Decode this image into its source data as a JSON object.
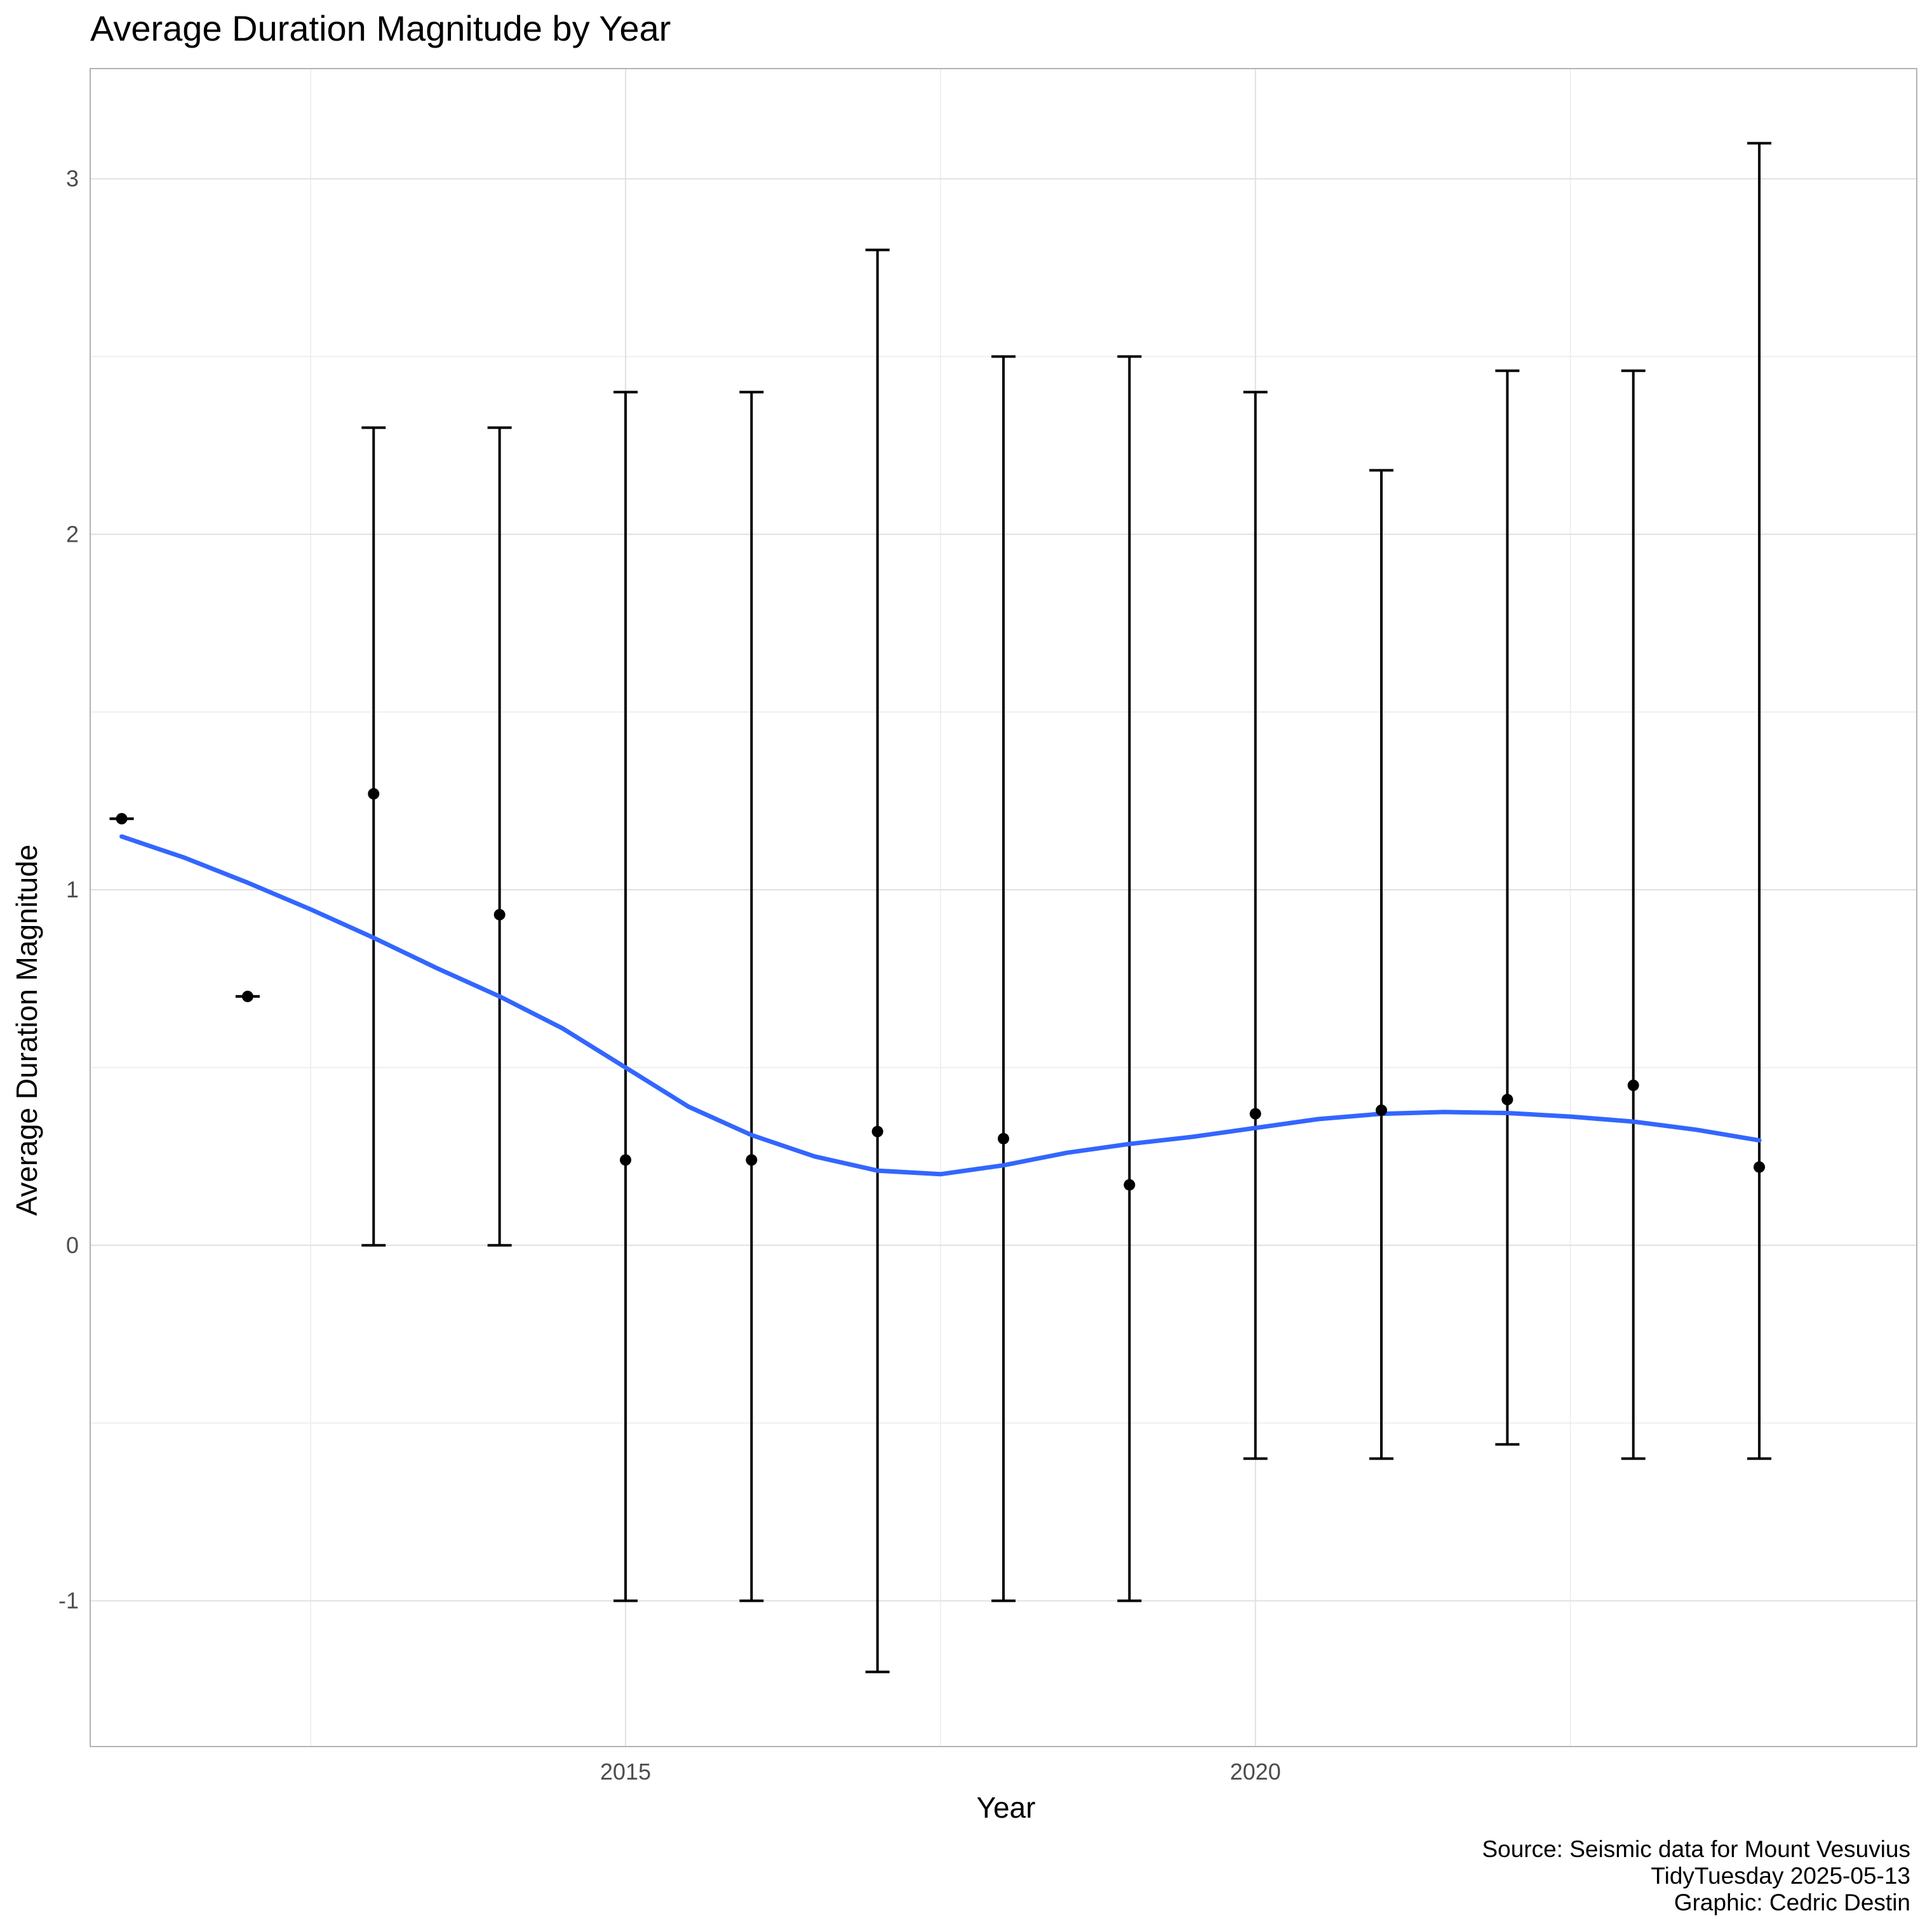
{
  "chart_data": {
    "type": "scatter",
    "title": "Average Duration Magnitude by Year",
    "xlabel": "Year",
    "ylabel": "Average Duration Magnitude",
    "caption": [
      "Source: Seismic data for Mount Vesuvius",
      "TidyTuesday 2025-05-13",
      "Graphic: Cedric Destin"
    ],
    "xlim": [
      2010.75,
      2025.25
    ],
    "ylim": [
      -1.41,
      3.31
    ],
    "x_ticks": [
      2015,
      2020
    ],
    "x_tick_labels": [
      "2015",
      "2020"
    ],
    "y_ticks": [
      -1,
      0,
      1,
      2,
      3
    ],
    "y_tick_labels": [
      "-1",
      "0",
      "1",
      "2",
      "3"
    ],
    "grid": true,
    "colors": {
      "points": "#000000",
      "errorbars": "#000000",
      "smooth": "#3366ff",
      "grid": "#e0e0e0",
      "panel_border": "#b3b3b3"
    },
    "points": [
      {
        "year": 2011,
        "mean": 1.2,
        "min": 1.2,
        "max": 1.2
      },
      {
        "year": 2012,
        "mean": 0.7,
        "min": 0.7,
        "max": 0.7
      },
      {
        "year": 2013,
        "mean": 1.27,
        "min": 0.0,
        "max": 2.3
      },
      {
        "year": 2014,
        "mean": 0.93,
        "min": 0.0,
        "max": 2.3
      },
      {
        "year": 2015,
        "mean": 0.24,
        "min": -1.0,
        "max": 2.4
      },
      {
        "year": 2016,
        "mean": 0.24,
        "min": -1.0,
        "max": 2.4
      },
      {
        "year": 2017,
        "mean": 0.32,
        "min": -1.2,
        "max": 2.8
      },
      {
        "year": 2018,
        "mean": 0.3,
        "min": -1.0,
        "max": 2.5
      },
      {
        "year": 2019,
        "mean": 0.17,
        "min": -1.0,
        "max": 2.5
      },
      {
        "year": 2020,
        "mean": 0.37,
        "min": -0.6,
        "max": 2.4
      },
      {
        "year": 2021,
        "mean": 0.38,
        "min": -0.6,
        "max": 2.18
      },
      {
        "year": 2022,
        "mean": 0.41,
        "min": -0.56,
        "max": 2.46
      },
      {
        "year": 2023,
        "mean": 0.45,
        "min": -0.6,
        "max": 2.46
      },
      {
        "year": 2024,
        "mean": 0.22,
        "min": -0.6,
        "max": 3.1
      }
    ],
    "smooth": {
      "name": "",
      "x": [
        2011,
        2011.5,
        2012,
        2012.5,
        2013,
        2013.5,
        2014,
        2014.5,
        2015,
        2015.5,
        2016,
        2016.5,
        2017,
        2017.5,
        2018,
        2018.5,
        2019,
        2019.5,
        2020,
        2020.5,
        2021,
        2021.5,
        2022,
        2022.5,
        2023,
        2023.5,
        2024
      ],
      "y": [
        1.15,
        1.09,
        1.02,
        0.945,
        0.865,
        0.78,
        0.7,
        0.61,
        0.5,
        0.39,
        0.31,
        0.25,
        0.21,
        0.2,
        0.225,
        0.26,
        0.285,
        0.305,
        0.33,
        0.355,
        0.37,
        0.375,
        0.372,
        0.362,
        0.348,
        0.325,
        0.295
      ]
    }
  }
}
